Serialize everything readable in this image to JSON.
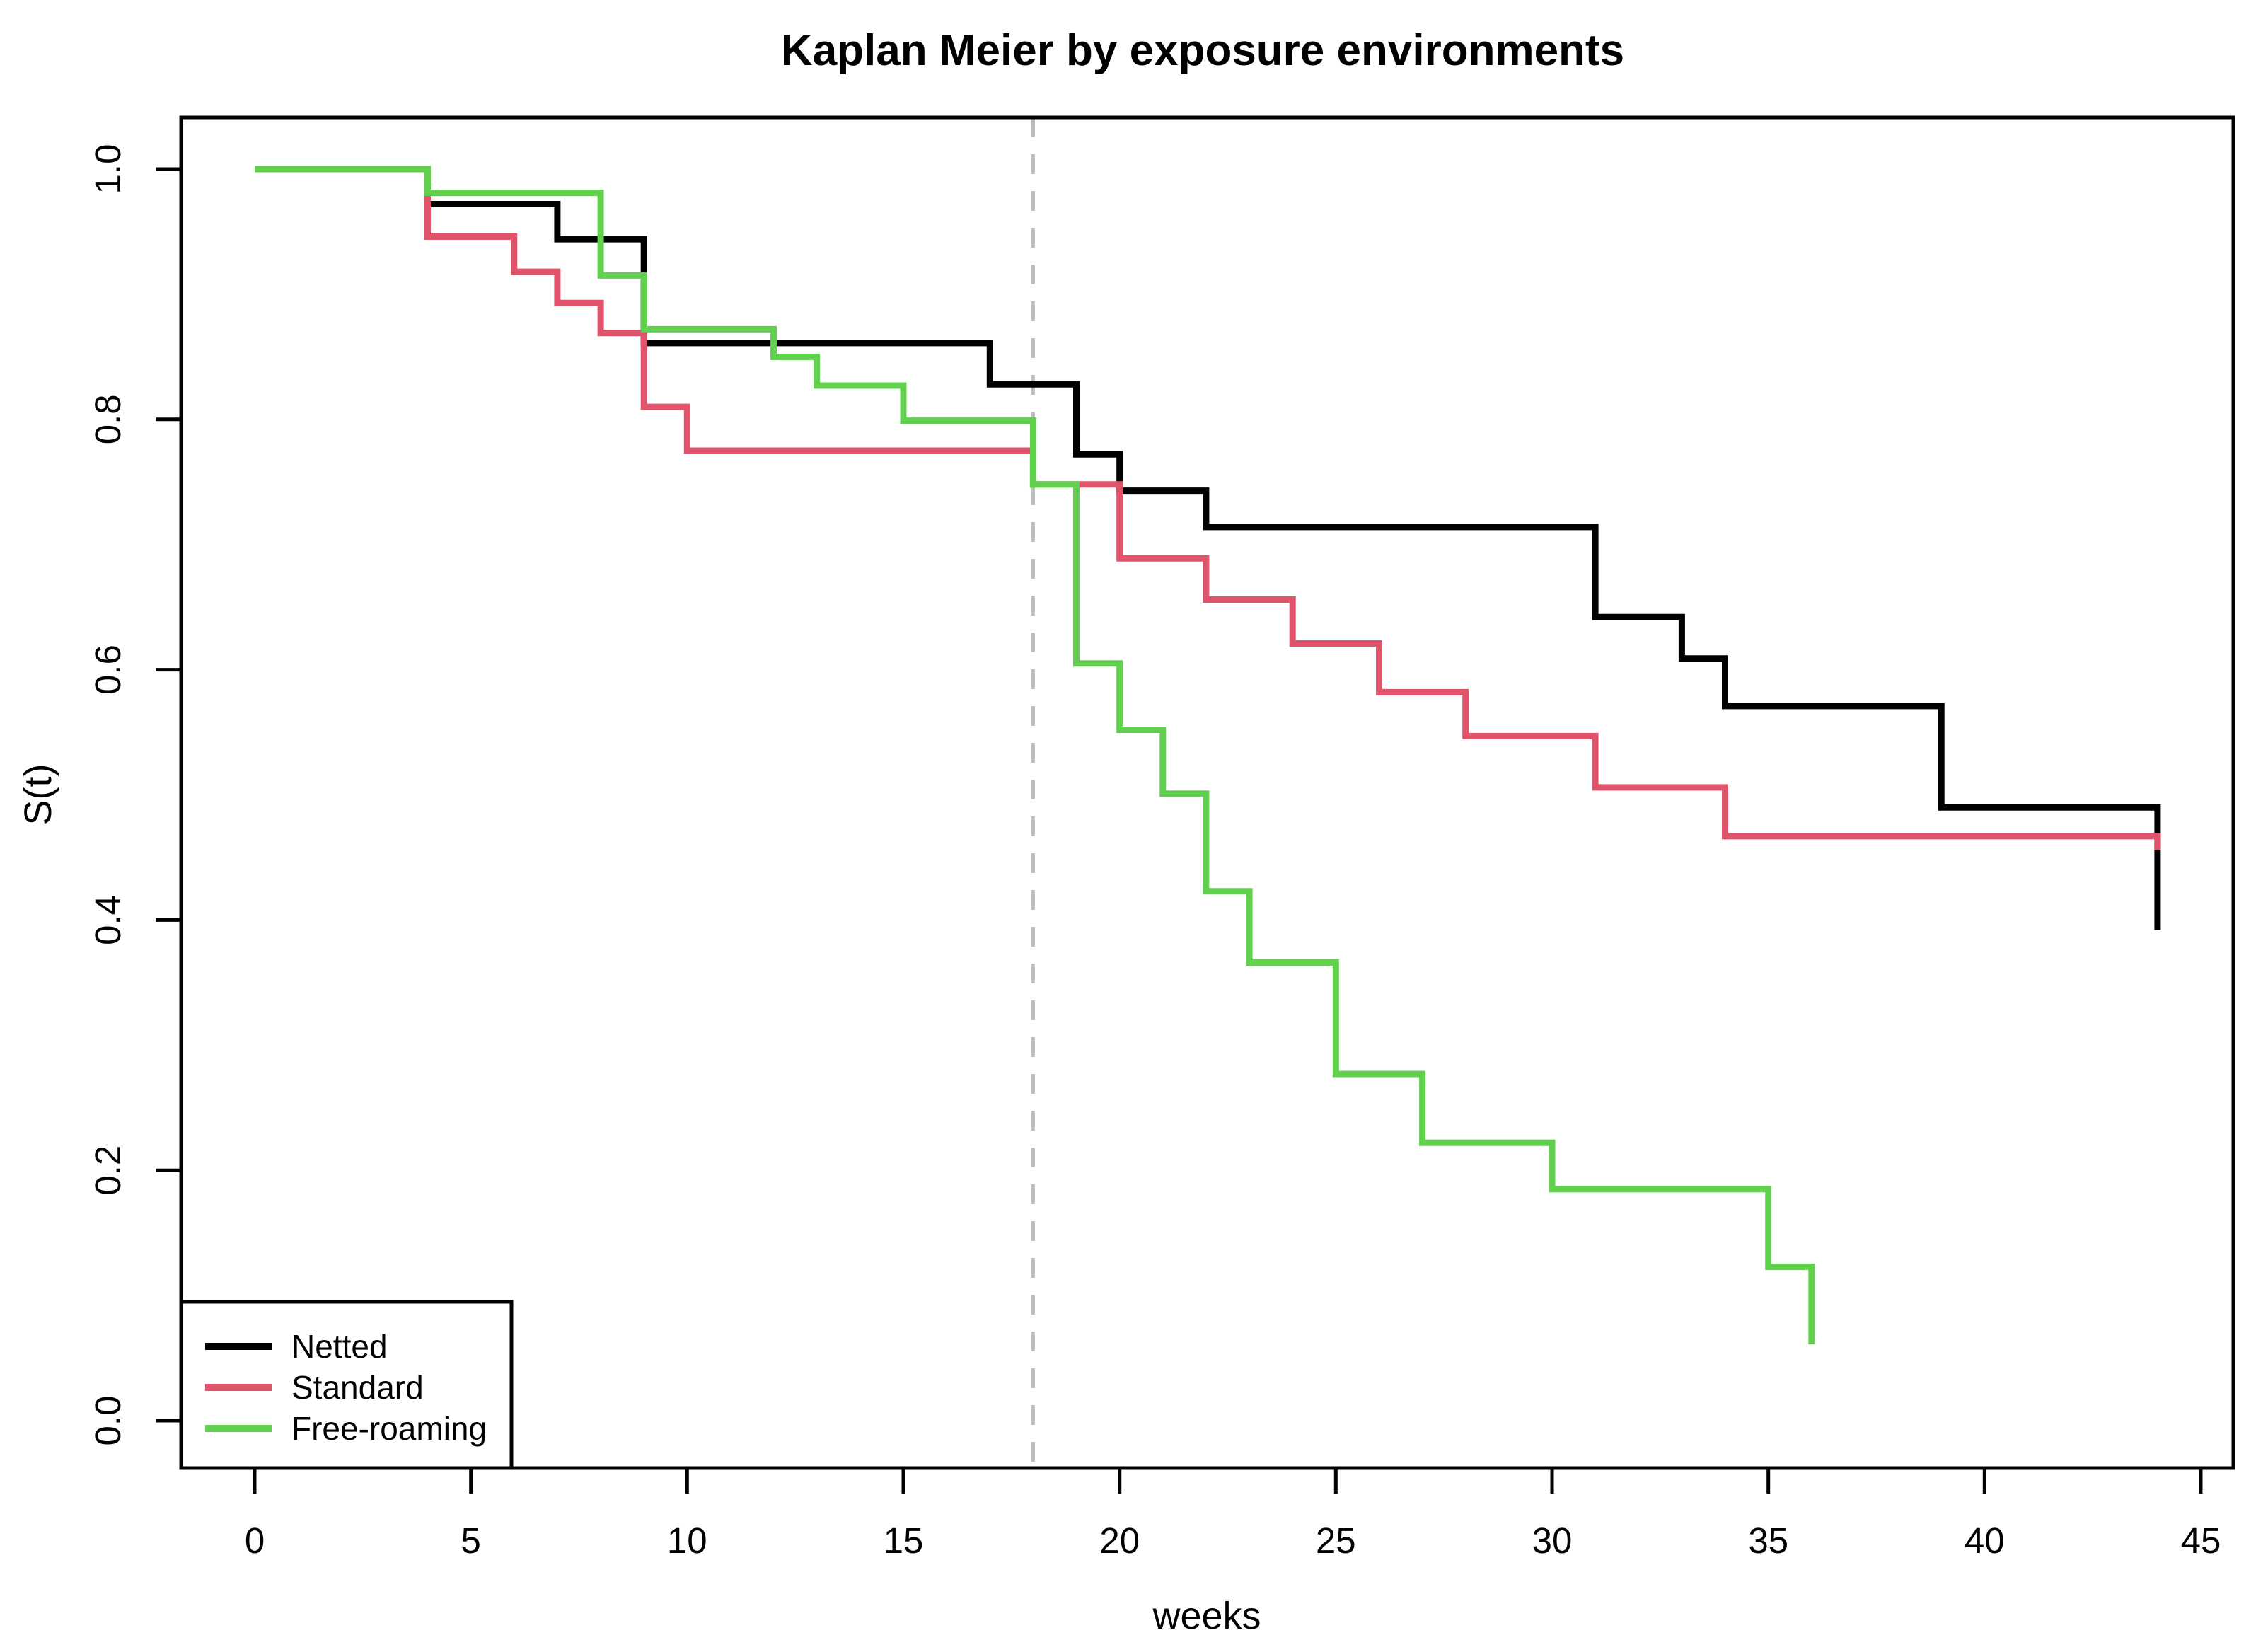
{
  "page": {
    "background": "#ffffff"
  },
  "chart_data": {
    "type": "line",
    "chart_style": "kaplan-meier-step",
    "title": "Kaplan Meier by exposure environments",
    "xlabel": "weeks",
    "ylabel": "S(t)",
    "x_ticks": [
      0,
      5,
      10,
      15,
      20,
      25,
      30,
      35,
      40,
      45
    ],
    "y_ticks": [
      {
        "value": 0.0,
        "label": "0.0"
      },
      {
        "value": 0.2,
        "label": "0.2"
      },
      {
        "value": 0.4,
        "label": "0.4"
      },
      {
        "value": 0.6,
        "label": "0.6"
      },
      {
        "value": 0.8,
        "label": "0.8"
      },
      {
        "value": 1.0,
        "label": "1.0"
      }
    ],
    "xlim": [
      -1.7,
      45.75
    ],
    "ylim": [
      -0.038,
      1.041
    ],
    "grid": false,
    "legend_position": "bottom-left",
    "reference_line": {
      "x": 18,
      "style": "dashed",
      "color": "#bdbdbd"
    },
    "series": [
      {
        "name": "Netted",
        "color": "#000000",
        "start": [
          0,
          1.0
        ],
        "steps": [
          [
            4,
            0.972
          ],
          [
            7,
            0.944
          ],
          [
            9,
            0.861
          ],
          [
            17,
            0.828
          ],
          [
            19,
            0.772
          ],
          [
            20,
            0.743
          ],
          [
            22,
            0.714
          ],
          [
            31,
            0.642
          ],
          [
            33,
            0.609
          ],
          [
            34,
            0.571
          ],
          [
            39,
            0.49
          ],
          [
            44,
            0.392
          ]
        ]
      },
      {
        "name": "Standard",
        "color": "#df536b",
        "start": [
          0,
          1.0
        ],
        "steps": [
          [
            4,
            0.946
          ],
          [
            6,
            0.918
          ],
          [
            7,
            0.893
          ],
          [
            8,
            0.869
          ],
          [
            9,
            0.81
          ],
          [
            10,
            0.775
          ],
          [
            18,
            0.748
          ],
          [
            20,
            0.689
          ],
          [
            22,
            0.656
          ],
          [
            24,
            0.621
          ],
          [
            26,
            0.582
          ],
          [
            28,
            0.547
          ],
          [
            31,
            0.506
          ],
          [
            34,
            0.467
          ],
          [
            44,
            0.456
          ]
        ]
      },
      {
        "name": "Free-roaming",
        "color": "#61d04f",
        "start": [
          0,
          1.0
        ],
        "steps": [
          [
            4,
            0.981
          ],
          [
            8,
            0.915
          ],
          [
            9,
            0.872
          ],
          [
            12,
            0.85
          ],
          [
            13,
            0.827
          ],
          [
            15,
            0.799
          ],
          [
            18,
            0.748
          ],
          [
            19,
            0.605
          ],
          [
            20,
            0.552
          ],
          [
            21,
            0.501
          ],
          [
            22,
            0.423
          ],
          [
            23,
            0.366
          ],
          [
            25,
            0.277
          ],
          [
            27,
            0.222
          ],
          [
            30,
            0.185
          ],
          [
            35,
            0.123
          ],
          [
            36,
            0.061
          ]
        ]
      }
    ]
  },
  "legend": {
    "items": [
      {
        "label": "Netted",
        "color": "#000000"
      },
      {
        "label": "Standard",
        "color": "#df536b"
      },
      {
        "label": "Free-roaming",
        "color": "#61d04f"
      }
    ]
  }
}
